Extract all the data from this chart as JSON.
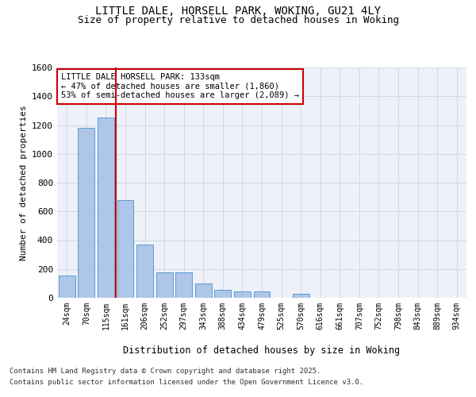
{
  "title_line1": "LITTLE DALE, HORSELL PARK, WOKING, GU21 4LY",
  "title_line2": "Size of property relative to detached houses in Woking",
  "xlabel": "Distribution of detached houses by size in Woking",
  "ylabel": "Number of detached properties",
  "categories": [
    "24sqm",
    "70sqm",
    "115sqm",
    "161sqm",
    "206sqm",
    "252sqm",
    "297sqm",
    "343sqm",
    "388sqm",
    "434sqm",
    "479sqm",
    "525sqm",
    "570sqm",
    "616sqm",
    "661sqm",
    "707sqm",
    "752sqm",
    "798sqm",
    "843sqm",
    "889sqm",
    "934sqm"
  ],
  "values": [
    155,
    1180,
    1250,
    680,
    370,
    175,
    175,
    100,
    55,
    45,
    45,
    0,
    30,
    0,
    0,
    0,
    0,
    0,
    0,
    0,
    0
  ],
  "bar_color": "#aec6e8",
  "bar_edge_color": "#5b9bd5",
  "red_line_x": 2.5,
  "red_line_color": "#cc0000",
  "ylim": [
    0,
    1600
  ],
  "yticks": [
    0,
    200,
    400,
    600,
    800,
    1000,
    1200,
    1400,
    1600
  ],
  "annotation_text": "LITTLE DALE HORSELL PARK: 133sqm\n← 47% of detached houses are smaller (1,860)\n53% of semi-detached houses are larger (2,089) →",
  "annotation_box_color": "#ffffff",
  "annotation_box_edge": "#cc0000",
  "grid_color": "#d0d8e8",
  "bg_color": "#eef2f8",
  "footer_line1": "Contains HM Land Registry data © Crown copyright and database right 2025.",
  "footer_line2": "Contains public sector information licensed under the Open Government Licence v3.0."
}
